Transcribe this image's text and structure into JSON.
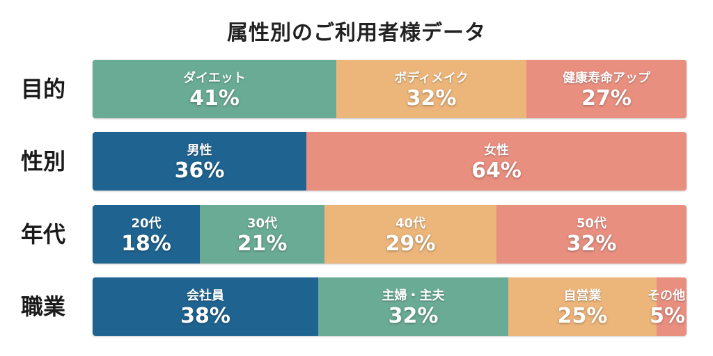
{
  "colors": {
    "blue": "#1f6491",
    "green": "#6aab96",
    "orange": "#ecb57a",
    "salmon": "#e98f80"
  },
  "chart_data": {
    "type": "bar",
    "stacked": true,
    "orientation": "horizontal",
    "title": "属性別のご利用者様データ",
    "unit": "%",
    "rows": [
      {
        "label": "目的",
        "segments": [
          {
            "name": "ダイエット",
            "value": 41,
            "color": "#6aab96"
          },
          {
            "name": "ボディメイク",
            "value": 32,
            "color": "#ecb57a"
          },
          {
            "name": "健康寿命アップ",
            "value": 27,
            "color": "#e98f80"
          }
        ]
      },
      {
        "label": "性別",
        "segments": [
          {
            "name": "男性",
            "value": 36,
            "color": "#1f6491"
          },
          {
            "name": "女性",
            "value": 64,
            "color": "#e98f80"
          }
        ]
      },
      {
        "label": "年代",
        "segments": [
          {
            "name": "20代",
            "value": 18,
            "color": "#1f6491"
          },
          {
            "name": "30代",
            "value": 21,
            "color": "#6aab96"
          },
          {
            "name": "40代",
            "value": 29,
            "color": "#ecb57a"
          },
          {
            "name": "50代",
            "value": 32,
            "color": "#e98f80"
          }
        ]
      },
      {
        "label": "職業",
        "segments": [
          {
            "name": "会社員",
            "value": 38,
            "color": "#1f6491"
          },
          {
            "name": "主婦・主夫",
            "value": 32,
            "color": "#6aab96"
          },
          {
            "name": "自営業",
            "value": 25,
            "color": "#ecb57a"
          },
          {
            "name": "その他",
            "value": 5,
            "color": "#e98f80"
          }
        ]
      }
    ]
  }
}
